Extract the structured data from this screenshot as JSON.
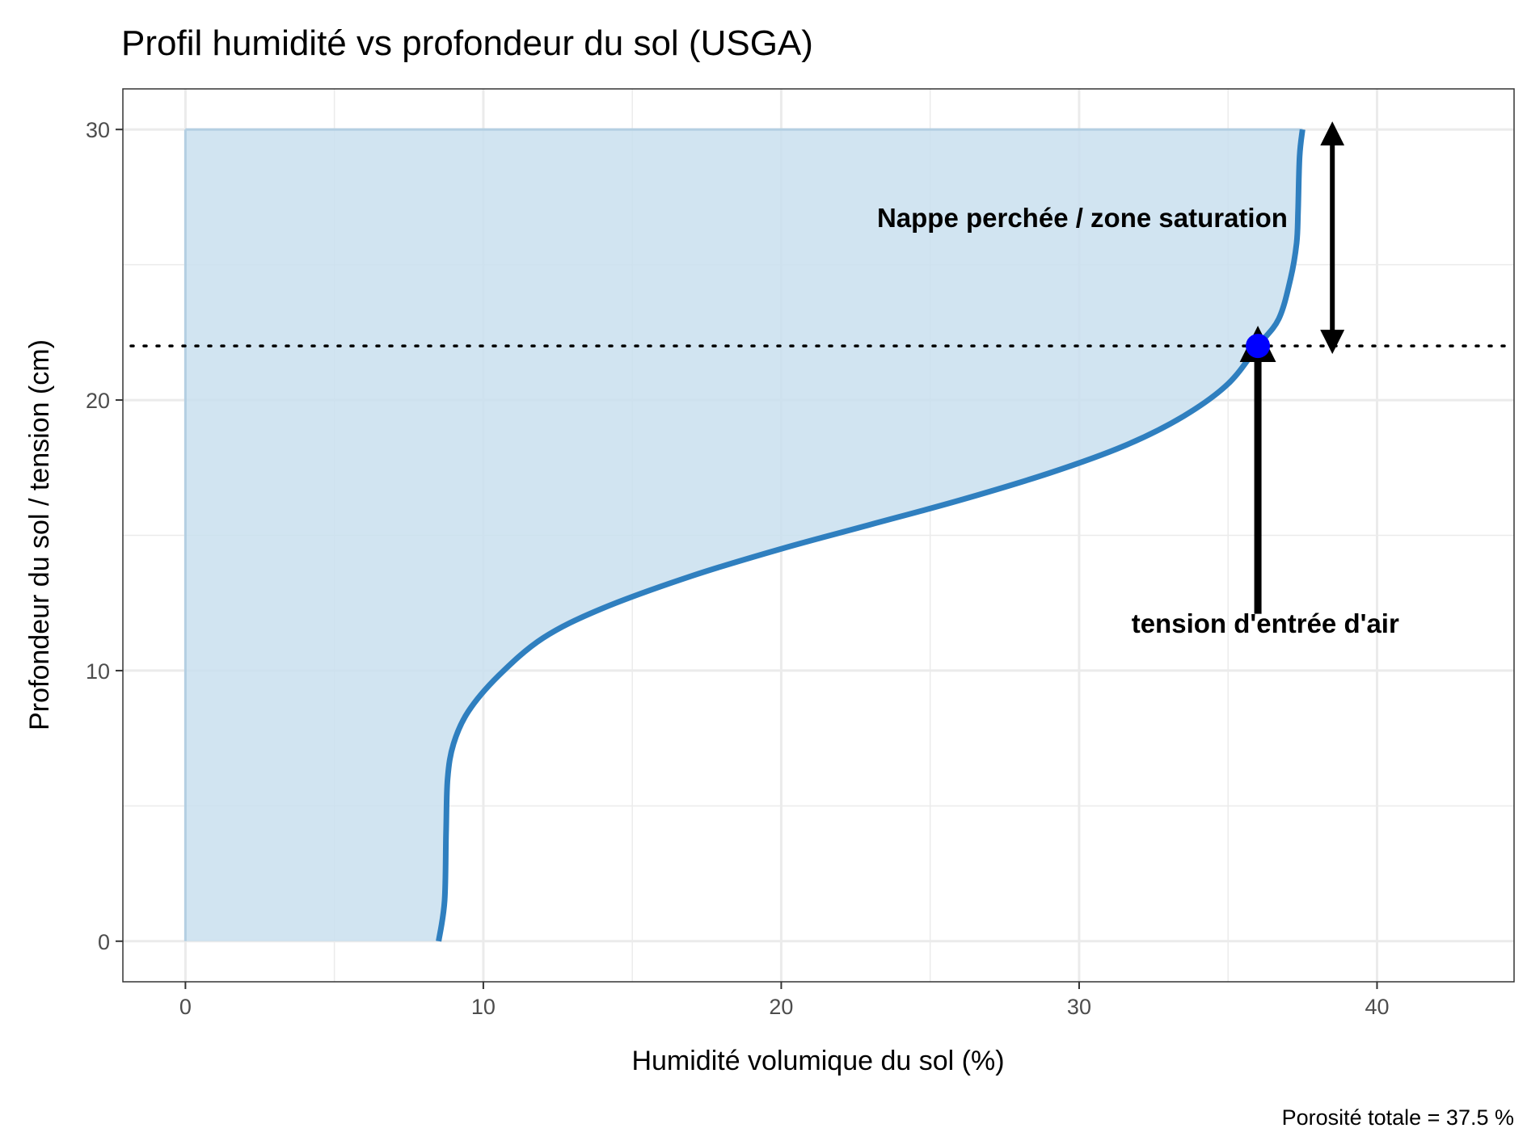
{
  "chart_data": {
    "type": "area",
    "title": "Profil humidité vs profondeur du sol (USGA)",
    "xlabel": "Humidité volumique du sol (%)",
    "ylabel": "Profondeur du sol / tension (cm)",
    "caption": "Porosité totale = 37.5 %",
    "xlim": [
      -2.1,
      44.6
    ],
    "ylim": [
      31.5,
      -1.5
    ],
    "y_reversed": true,
    "x_ticks": [
      0,
      10,
      20,
      30,
      40
    ],
    "y_ticks": [
      0,
      10,
      20,
      30
    ],
    "grid": true,
    "legend": "none",
    "colors": {
      "line": "#2f7fbf",
      "fill": "#c9dfee",
      "point": "#0000ff",
      "annotation": "#000000"
    },
    "series": [
      {
        "x": [
          8.5,
          8.7,
          8.75,
          8.8,
          9.0,
          9.5,
          10.5,
          12.0,
          14.0,
          17.0,
          20.0,
          23.0,
          26.0,
          29.0,
          31.5,
          33.5,
          35.0,
          36.0,
          36.7,
          37.1,
          37.3,
          37.35,
          37.4,
          37.5
        ],
        "y": [
          0,
          1.5,
          4.0,
          6.0,
          7.3,
          8.5,
          9.8,
          11.2,
          12.3,
          13.5,
          14.5,
          15.4,
          16.3,
          17.3,
          18.3,
          19.4,
          20.6,
          22.0,
          23.0,
          24.5,
          25.8,
          27.0,
          29.0,
          30.0
        ]
      }
    ],
    "air_entry": {
      "x": 36.0,
      "y": 22.0,
      "label": "tension d'entrée d'air"
    },
    "perched_water": {
      "label": "Nappe perchée / zone saturation",
      "from_depth": 22.0,
      "to_depth": 30.0
    }
  }
}
